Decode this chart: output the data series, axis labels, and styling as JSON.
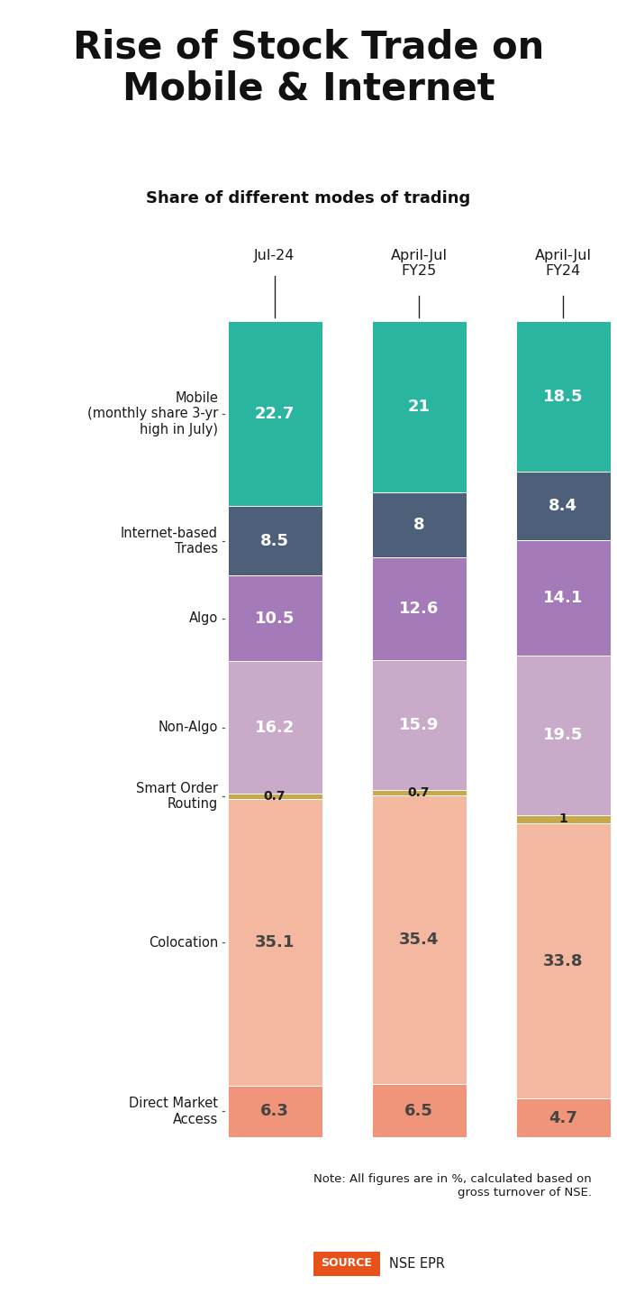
{
  "title": "Rise of Stock Trade on\nMobile & Internet",
  "subtitle": "Share of different modes of trading",
  "columns": [
    "Jul-24",
    "April-Jul\nFY25",
    "April-Jul\nFY24"
  ],
  "categories": [
    "Mobile\n(monthly share 3-yr\nhigh in July)",
    "Internet-based\nTrades",
    "Algo",
    "Non-Algo",
    "Smart Order\nRouting",
    "Colocation",
    "Direct Market\nAccess"
  ],
  "values": [
    [
      22.7,
      8.5,
      10.5,
      16.2,
      0.7,
      35.1,
      6.3
    ],
    [
      21.0,
      8.0,
      12.6,
      15.9,
      0.7,
      35.4,
      6.5
    ],
    [
      18.5,
      8.4,
      14.1,
      19.5,
      1.0,
      33.8,
      4.7
    ]
  ],
  "seg_colors": [
    "#2ab5a0",
    "#4e5f7a",
    "#a47bb8",
    "#c9aac8",
    "#c8a84b",
    "#f4b8a0",
    "#f0957a"
  ],
  "seg_text_colors": [
    "#ffffff",
    "#ffffff",
    "#ffffff",
    "#ffffff",
    "#1a1a1a",
    "#444444",
    "#444444"
  ],
  "note": "Note: All figures are in %, calculated based on\ngross turnover of NSE.",
  "source_label": "SOURCE",
  "source_text": "NSE EPR",
  "source_bg": "#e8521a",
  "bg_color": "#ffffff"
}
